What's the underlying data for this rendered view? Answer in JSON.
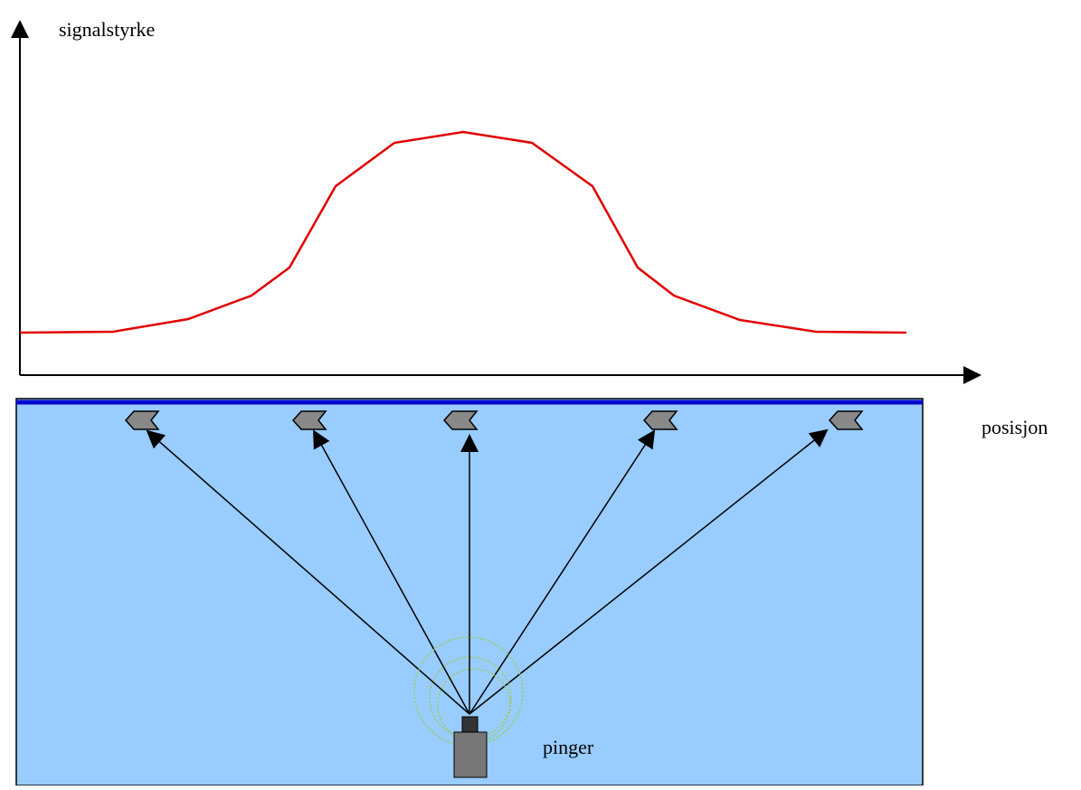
{
  "labels": {
    "y_axis": "signalstyrke",
    "x_axis": "posisjon",
    "source": "pinger"
  }
}
